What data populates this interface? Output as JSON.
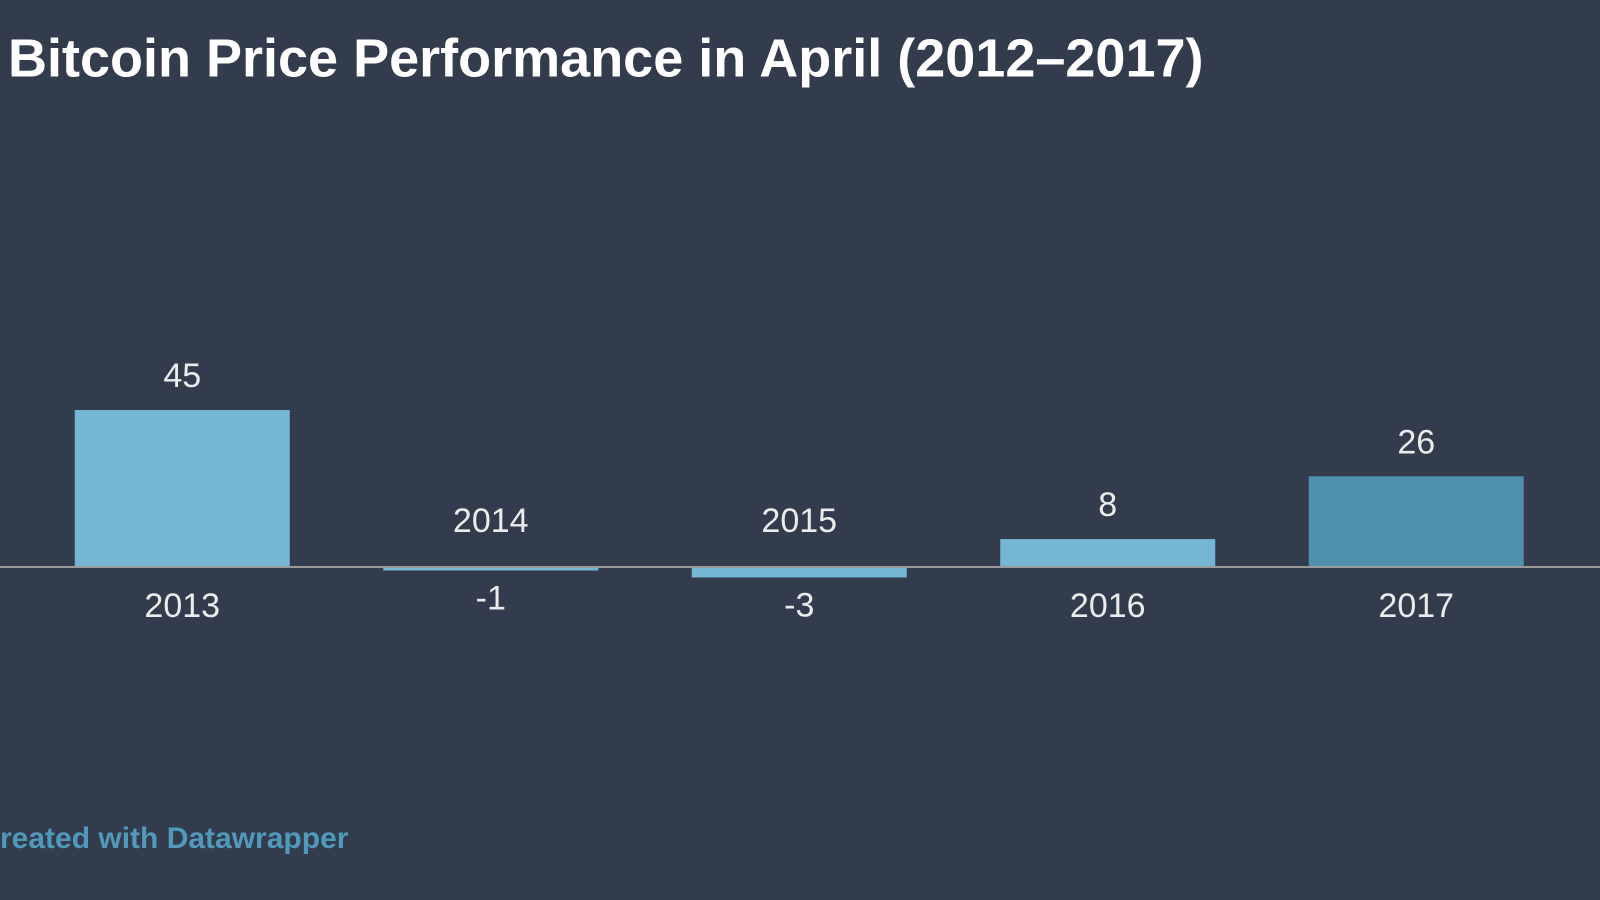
{
  "chart_data": {
    "type": "bar",
    "title": "Bitcoin Price Performance in April (2012–2017)",
    "categories": [
      "2013",
      "2014",
      "2015",
      "2016",
      "2017"
    ],
    "values": [
      45,
      -1,
      -3,
      8,
      26
    ],
    "colors": [
      "#76b6d5",
      "#76b6d5",
      "#76b6d5",
      "#76b6d5",
      "#4f90ad"
    ],
    "footer": "reated with Datawrapper"
  }
}
